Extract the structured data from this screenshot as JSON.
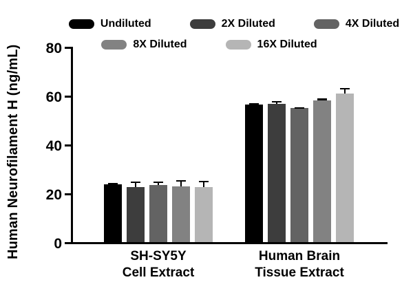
{
  "chart_data": {
    "type": "bar",
    "title": "",
    "ylabel": "Human Neurofilament H (ng/mL)",
    "xlabel": "",
    "ylim": [
      0,
      80
    ],
    "yticks": [
      0,
      20,
      40,
      60,
      80
    ],
    "grid": false,
    "legend_position": "top",
    "categories": [
      "SH-SY5Y\nCell Extract",
      "Human Brain\nTissue Extract"
    ],
    "series": [
      {
        "name": "Undiluted",
        "color": "#000000",
        "values": [
          23.8,
          56.3
        ],
        "errors": [
          0.3,
          0.5
        ]
      },
      {
        "name": "2X Diluted",
        "color": "#3d3d3d",
        "values": [
          22.6,
          56.6
        ],
        "errors": [
          2.3,
          1.2
        ]
      },
      {
        "name": "4X Diluted",
        "color": "#636363",
        "values": [
          23.4,
          54.8
        ],
        "errors": [
          1.5,
          0.5
        ]
      },
      {
        "name": "8X Diluted",
        "color": "#828282",
        "values": [
          22.9,
          58.0
        ],
        "errors": [
          2.5,
          0.8
        ]
      },
      {
        "name": "16X Diluted",
        "color": "#b5b5b5",
        "values": [
          22.5,
          60.9
        ],
        "errors": [
          2.6,
          2.2
        ]
      }
    ],
    "legend_rows": [
      [
        "Undiluted",
        "2X Diluted",
        "4X Diluted"
      ],
      [
        "8X Diluted",
        "16X Diluted"
      ]
    ],
    "error_bar_color": "#000000"
  }
}
